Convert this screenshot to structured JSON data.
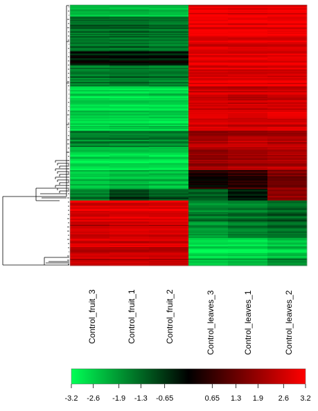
{
  "chart_data": {
    "type": "heatmap",
    "title": "",
    "xlabel": "",
    "ylabel": "",
    "columns": [
      "Control_fruit_3",
      "Control_fruit_1",
      "Control_fruit_2",
      "Control_leaves_3",
      "Control_leaves_1",
      "Control_leaves_2"
    ],
    "dendrogram": "left",
    "colorscale": {
      "low_color": "#00ff55",
      "mid_color": "#000000",
      "high_color": "#ff0000",
      "range": [
        -3.2,
        3.2
      ],
      "tick_labels": [
        "-3.2",
        "-2.6",
        "-1.9",
        "-1.3",
        "-0.65",
        "0.65",
        "1.3",
        "1.9",
        "2.6",
        "3.2"
      ],
      "tick_values": [
        -3.2,
        -2.6,
        -1.9,
        -1.3,
        -0.65,
        0.65,
        1.3,
        1.9,
        2.6,
        3.2
      ]
    },
    "row_blocks": [
      {
        "rows": 10,
        "values": [
          -2.4,
          -2.4,
          -2.4,
          2.9,
          2.9,
          2.9
        ]
      },
      {
        "rows": 30,
        "values": [
          -1.4,
          -1.4,
          -1.5,
          2.9,
          2.9,
          2.9
        ]
      },
      {
        "rows": 12,
        "values": [
          -0.3,
          -0.3,
          -0.3,
          3.0,
          3.0,
          3.0
        ]
      },
      {
        "rows": 18,
        "values": [
          -1.6,
          -1.5,
          -1.6,
          2.8,
          2.8,
          2.8
        ]
      },
      {
        "rows": 38,
        "values": [
          -2.7,
          -2.7,
          -2.7,
          2.6,
          2.5,
          2.6
        ]
      },
      {
        "rows": 14,
        "values": [
          -1.7,
          -1.7,
          -1.7,
          2.1,
          2.3,
          2.2
        ]
      },
      {
        "rows": 20,
        "values": [
          -2.6,
          -2.6,
          -2.6,
          1.8,
          2.0,
          2.1
        ]
      },
      {
        "rows": 16,
        "values": [
          -2.4,
          -2.2,
          -2.3,
          0.3,
          0.6,
          1.6
        ]
      },
      {
        "rows": 10,
        "values": [
          -1.6,
          -0.8,
          -1.1,
          -1.1,
          -0.3,
          1.8
        ]
      },
      {
        "rows": 18,
        "values": [
          2.8,
          2.8,
          2.8,
          -1.6,
          -1.4,
          -1.2
        ]
      },
      {
        "rows": 14,
        "values": [
          2.4,
          2.5,
          2.5,
          -1.9,
          -1.6,
          -1.4
        ]
      },
      {
        "rows": 18,
        "values": [
          2.6,
          2.6,
          2.6,
          -2.9,
          -2.9,
          -2.6
        ]
      },
      {
        "rows": 6,
        "values": [
          2.2,
          2.2,
          2.2,
          -2.4,
          -2.2,
          -1.6
        ]
      }
    ]
  }
}
